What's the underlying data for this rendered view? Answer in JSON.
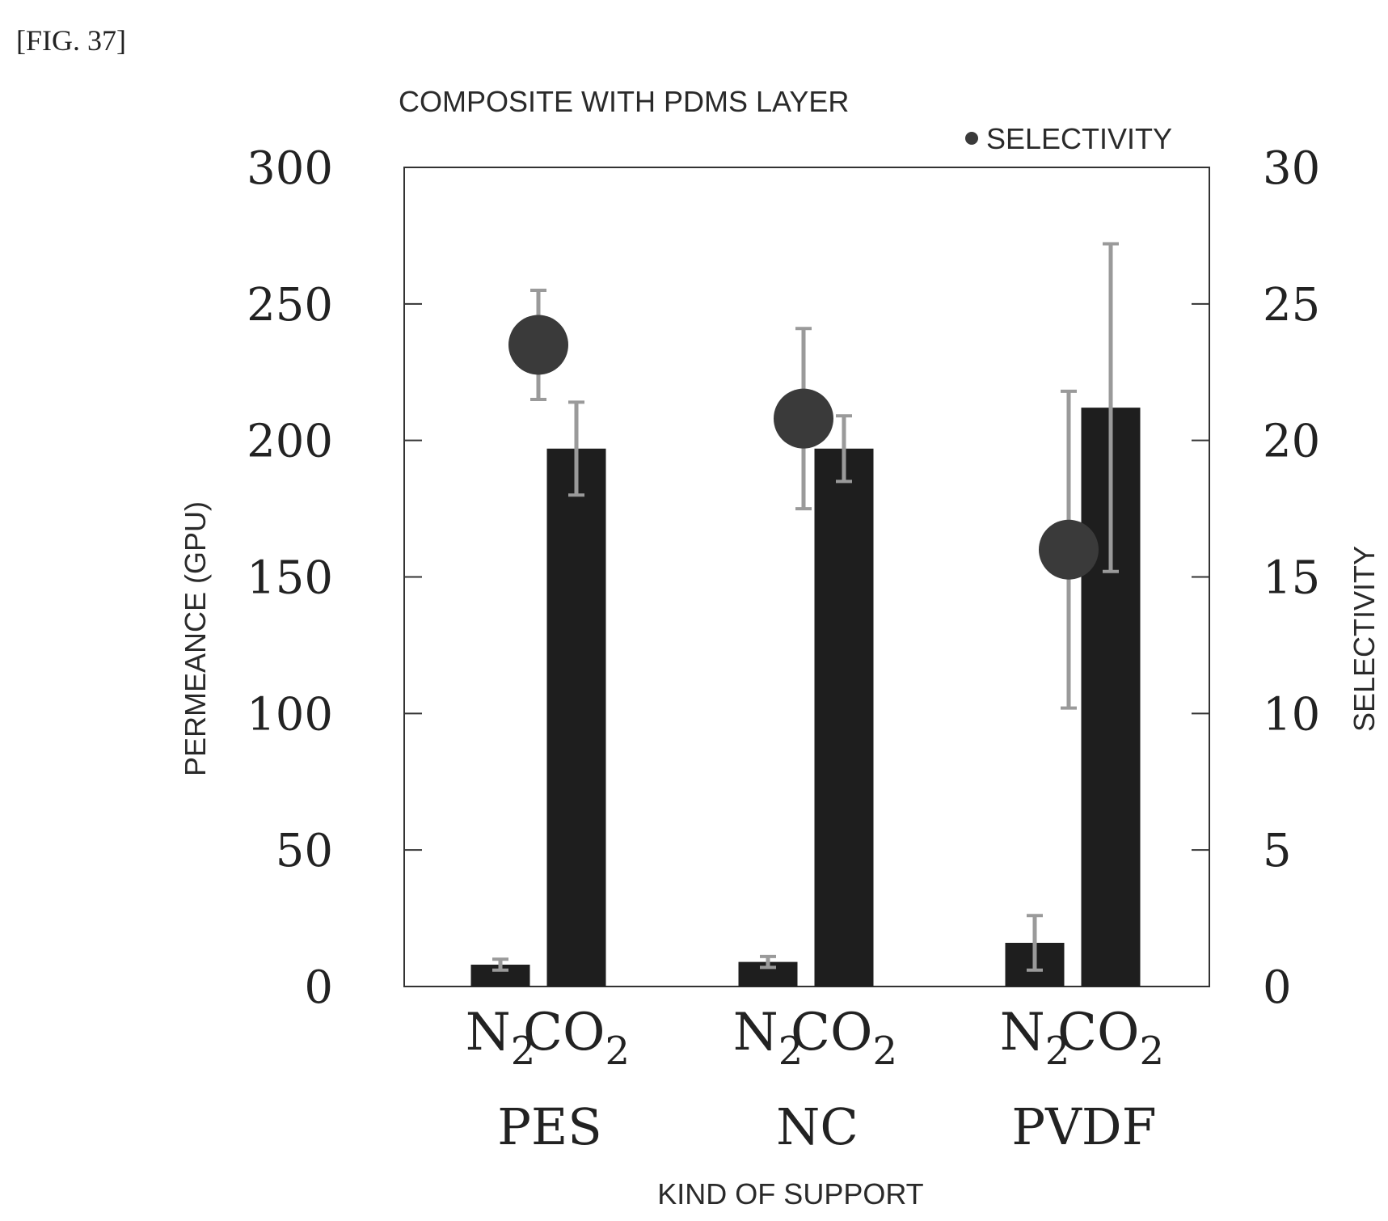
{
  "figure_label": "[FIG. 37]",
  "chart_data": {
    "type": "bar",
    "title": "COMPOSITE WITH PDMS LAYER",
    "xlabel": "KIND OF SUPPORT",
    "ylabel": "PERMEANCE (GPU)",
    "y2label": "SELECTIVITY",
    "ylim": [
      0,
      300
    ],
    "y2lim": [
      0,
      30
    ],
    "yticks": [
      "0",
      "50",
      "100",
      "150",
      "200",
      "250",
      "300"
    ],
    "y2ticks": [
      "0",
      "5",
      "10",
      "15",
      "20",
      "25",
      "30"
    ],
    "categories": [
      "PES",
      "NC",
      "PVDF"
    ],
    "bar_labels": [
      {
        "base": "N",
        "sub": "2"
      },
      {
        "base": "CO",
        "sub": "2"
      }
    ],
    "series": [
      {
        "gas": "N2",
        "values": [
          8,
          9,
          16
        ],
        "errors": [
          2,
          2,
          10
        ]
      },
      {
        "gas": "CO2",
        "values": [
          197,
          197,
          212
        ],
        "errors": [
          17,
          12,
          60
        ]
      }
    ],
    "selectivity": {
      "name": "SELECTIVITY",
      "values": [
        23.5,
        20.8,
        16
      ],
      "errors": [
        2,
        3.3,
        5.8
      ]
    },
    "legend_position": "top-right",
    "grid": false,
    "colors": {
      "bar": "#1e1e1e",
      "marker": "#3a3a3a",
      "error_bar": "#9a9a9a",
      "axis": "#333333"
    }
  }
}
